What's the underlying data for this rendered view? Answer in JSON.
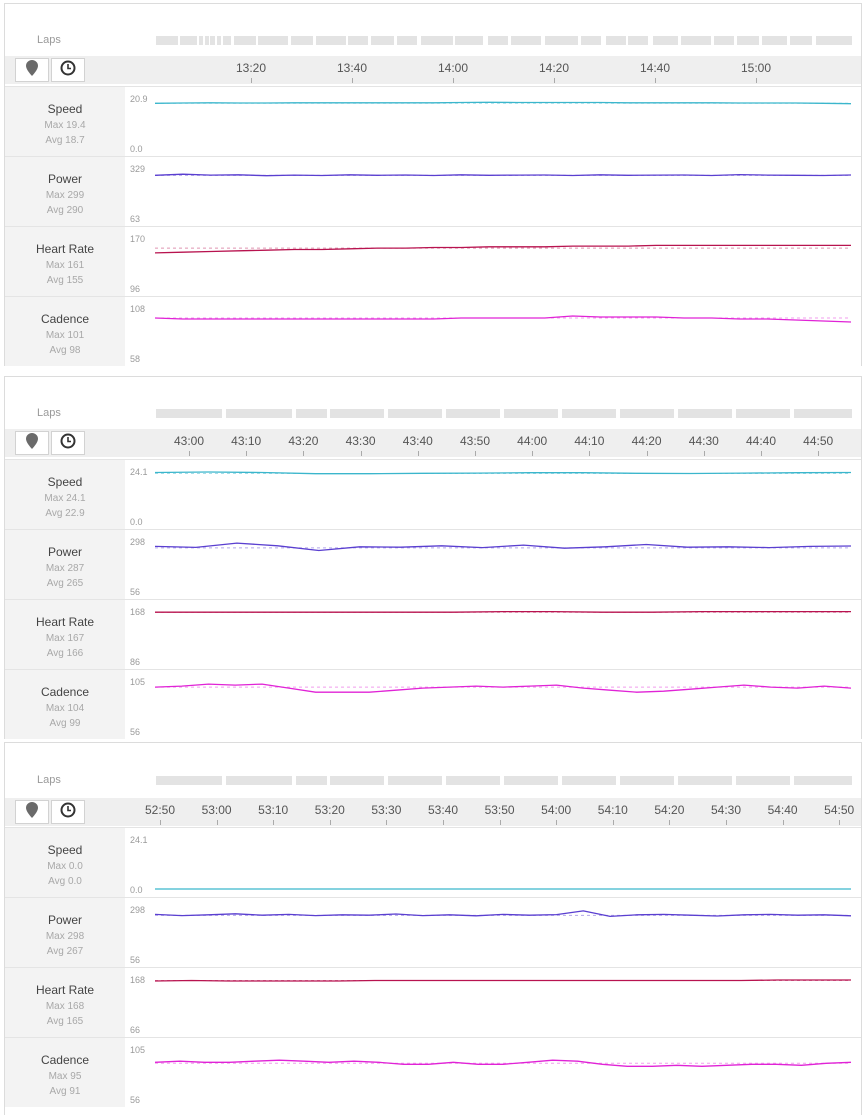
{
  "laps_label": "Laps",
  "icons": {
    "map": "map-pin-icon",
    "time": "clock-icon"
  },
  "colors": {
    "speed": "#3bb6cc",
    "power": "#5a3fd0",
    "heart_rate": "#b8134f",
    "cadence": "#e023d6",
    "avg_line": "#c8c8c8"
  },
  "panels": [
    {
      "ticks": [
        "13:20",
        "13:40",
        "14:00",
        "14:20",
        "14:40",
        "15:00"
      ],
      "metrics": [
        {
          "name": "Speed",
          "max": "Max 19.4",
          "avg": "Avg 18.7",
          "top": "20.9",
          "bottom": "0.0"
        },
        {
          "name": "Power",
          "max": "Max 299",
          "avg": "Avg 290",
          "top": "329",
          "bottom": "63"
        },
        {
          "name": "Heart Rate",
          "max": "Max 161",
          "avg": "Avg 155",
          "top": "170",
          "bottom": "96"
        },
        {
          "name": "Cadence",
          "max": "Max 101",
          "avg": "Avg 98",
          "top": "108",
          "bottom": "58"
        }
      ]
    },
    {
      "ticks": [
        "43:00",
        "43:10",
        "43:20",
        "43:30",
        "43:40",
        "43:50",
        "44:00",
        "44:10",
        "44:20",
        "44:30",
        "44:40",
        "44:50"
      ],
      "metrics": [
        {
          "name": "Speed",
          "max": "Max 24.1",
          "avg": "Avg 22.9",
          "top": "24.1",
          "bottom": "0.0"
        },
        {
          "name": "Power",
          "max": "Max 287",
          "avg": "Avg 265",
          "top": "298",
          "bottom": "56"
        },
        {
          "name": "Heart Rate",
          "max": "Max 167",
          "avg": "Avg 166",
          "top": "168",
          "bottom": "86"
        },
        {
          "name": "Cadence",
          "max": "Max 104",
          "avg": "Avg 99",
          "top": "105",
          "bottom": "56"
        }
      ]
    },
    {
      "ticks": [
        "52:50",
        "53:00",
        "53:10",
        "53:20",
        "53:30",
        "53:40",
        "53:50",
        "54:00",
        "54:10",
        "54:20",
        "54:30",
        "54:40",
        "54:50"
      ],
      "metrics": [
        {
          "name": "Speed",
          "max": "Max 0.0",
          "avg": "Avg 0.0",
          "top": "24.1",
          "bottom": "0.0"
        },
        {
          "name": "Power",
          "max": "Max 298",
          "avg": "Avg 267",
          "top": "298",
          "bottom": "56"
        },
        {
          "name": "Heart Rate",
          "max": "Max 168",
          "avg": "Avg 165",
          "top": "168",
          "bottom": "66"
        },
        {
          "name": "Cadence",
          "max": "Max 95",
          "avg": "Avg 91",
          "top": "105",
          "bottom": "56"
        }
      ]
    }
  ],
  "chart_data": [
    {
      "type": "line",
      "x_ticks": [
        "13:20",
        "13:40",
        "14:00",
        "14:20",
        "14:40",
        "15:00"
      ],
      "series": [
        {
          "name": "Speed",
          "ylim": [
            0,
            20.9
          ],
          "avg": 18.7,
          "values": [
            18.7,
            18.8,
            18.9,
            18.8,
            18.8,
            18.9,
            18.9,
            18.9,
            18.9,
            18.9,
            18.9,
            19.0,
            19.1,
            19.0,
            19.0,
            19.0,
            19.0,
            18.9,
            18.9,
            18.9,
            18.9,
            18.8,
            18.8,
            18.8,
            18.7,
            18.5
          ]
        },
        {
          "name": "Power",
          "ylim": [
            63,
            329
          ],
          "avg": 290,
          "values": [
            290,
            296,
            291,
            293,
            288,
            291,
            289,
            293,
            290,
            292,
            289,
            293,
            290,
            291,
            292,
            289,
            293,
            290,
            291,
            292,
            289,
            294,
            291,
            290,
            289,
            292
          ]
        },
        {
          "name": "Heart Rate",
          "ylim": [
            96,
            170
          ],
          "avg": 155,
          "values": [
            148,
            149,
            150,
            151,
            152,
            153,
            153,
            154,
            155,
            155,
            156,
            156,
            157,
            157,
            157,
            158,
            158,
            158,
            159,
            159,
            159,
            159,
            159,
            159,
            159,
            159
          ]
        },
        {
          "name": "Cadence",
          "ylim": [
            58,
            108
          ],
          "avg": 98,
          "values": [
            98,
            97,
            97,
            97,
            97,
            97,
            97,
            97,
            97,
            97,
            97,
            98,
            98,
            98,
            98,
            100,
            99,
            99,
            99,
            98,
            98,
            97,
            97,
            96,
            95,
            94
          ]
        }
      ]
    },
    {
      "type": "line",
      "x_ticks": [
        "43:00",
        "43:10",
        "43:20",
        "43:30",
        "43:40",
        "43:50",
        "44:00",
        "44:10",
        "44:20",
        "44:30",
        "44:40",
        "44:50"
      ],
      "series": [
        {
          "name": "Speed",
          "ylim": [
            0,
            24.1
          ],
          "avg": 22.9,
          "values": [
            23.4,
            23.6,
            23.4,
            22.8,
            22.8,
            23.0,
            23.1,
            23.3,
            23.3,
            23.0,
            22.9,
            23.1,
            23.3,
            23.4
          ]
        },
        {
          "name": "Power",
          "ylim": [
            56,
            298
          ],
          "avg": 265,
          "values": [
            272,
            267,
            288,
            275,
            252,
            270,
            268,
            275,
            266,
            278,
            263,
            270,
            281,
            268,
            270,
            266,
            272,
            274
          ]
        },
        {
          "name": "Heart Rate",
          "ylim": [
            86,
            168
          ],
          "avg": 166,
          "values": [
            166,
            166,
            166,
            166,
            166,
            166,
            166,
            167,
            167,
            166,
            166,
            167,
            167,
            167,
            167
          ]
        },
        {
          "name": "Cadence",
          "ylim": [
            56,
            105
          ],
          "avg": 99,
          "values": [
            99,
            100,
            102,
            101,
            102,
            98,
            94,
            94,
            94,
            96,
            98,
            99,
            100,
            99,
            100,
            101,
            98,
            96,
            94,
            95,
            97,
            99,
            101,
            99,
            98,
            100,
            98
          ]
        }
      ]
    },
    {
      "type": "line",
      "x_ticks": [
        "52:50",
        "53:00",
        "53:10",
        "53:20",
        "53:30",
        "53:40",
        "53:50",
        "54:00",
        "54:10",
        "54:20",
        "54:30",
        "54:40",
        "54:50"
      ],
      "series": [
        {
          "name": "Speed",
          "ylim": [
            0,
            24.1
          ],
          "avg": 0.0,
          "values": [
            0.0,
            0.0,
            0.0,
            0.0,
            0.0,
            0.0,
            0.0,
            0.0,
            0.0,
            0.0
          ]
        },
        {
          "name": "Power",
          "ylim": [
            56,
            298
          ],
          "avg": 267,
          "values": [
            272,
            266,
            270,
            275,
            268,
            272,
            266,
            270,
            268,
            274,
            266,
            270,
            265,
            272,
            268,
            271,
            289,
            262,
            270,
            272,
            268,
            264,
            270,
            272,
            268,
            270,
            265
          ]
        },
        {
          "name": "Heart Rate",
          "ylim": [
            66,
            168
          ],
          "avg": 165,
          "values": [
            164,
            165,
            164,
            164,
            164,
            164,
            165,
            165,
            165,
            165,
            165,
            165,
            165,
            165,
            165,
            165,
            165,
            166,
            166,
            166
          ]
        },
        {
          "name": "Cadence",
          "ylim": [
            56,
            105
          ],
          "avg": 91,
          "values": [
            92,
            93,
            92,
            92,
            93,
            94,
            93,
            92,
            93,
            92,
            90,
            90,
            92,
            90,
            90,
            92,
            94,
            93,
            90,
            88,
            88,
            89,
            88,
            89,
            90,
            90,
            89,
            91,
            92
          ]
        }
      ]
    }
  ]
}
